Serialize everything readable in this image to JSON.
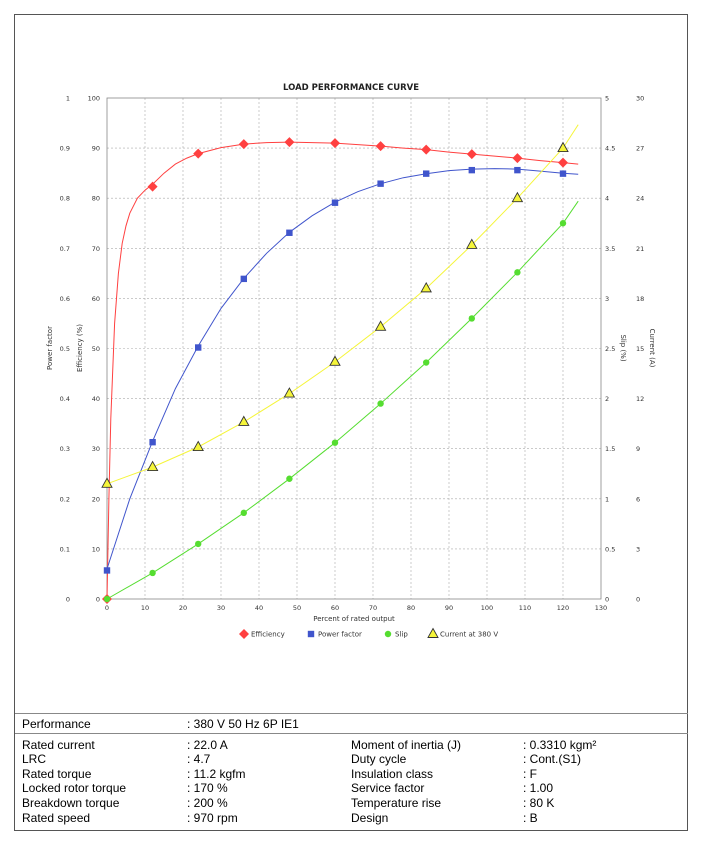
{
  "chart_data": {
    "type": "line",
    "title": "LOAD PERFORMANCE CURVE",
    "xlabel": "Percent of rated output",
    "xlim": [
      0,
      130
    ],
    "x_ticks": [
      0,
      10,
      20,
      30,
      40,
      50,
      60,
      70,
      80,
      90,
      100,
      110,
      120,
      130
    ],
    "axes": {
      "power_factor": {
        "label": "Power factor",
        "range": [
          0,
          1
        ],
        "ticks": [
          "0",
          "0.1",
          "0.2",
          "0.3",
          "0.4",
          "0.5",
          "0.6",
          "0.7",
          "0.8",
          "0.9",
          "1"
        ]
      },
      "efficiency": {
        "label": "Efficiency (%)",
        "range": [
          0,
          100
        ],
        "ticks": [
          "0",
          "10",
          "20",
          "30",
          "40",
          "50",
          "60",
          "70",
          "80",
          "90",
          "100"
        ]
      },
      "slip": {
        "label": "Slip (%)",
        "range": [
          0,
          5
        ],
        "ticks": [
          "0",
          "0.5",
          "1",
          "1.5",
          "2",
          "2.5",
          "3",
          "3.5",
          "4",
          "4.5",
          "5"
        ]
      },
      "current": {
        "label": "Current (A)",
        "range": [
          0,
          30
        ],
        "ticks": [
          "0",
          "3",
          "6",
          "9",
          "12",
          "15",
          "18",
          "21",
          "24",
          "27",
          "30"
        ]
      }
    },
    "grid": true,
    "legend_position": "bottom",
    "series": [
      {
        "name": "Efficiency",
        "axis": "efficiency",
        "color": "#ff4040",
        "marker": "diamond",
        "points": [
          [
            0,
            0
          ],
          [
            12,
            82.3
          ],
          [
            24,
            88.9
          ],
          [
            36,
            90.8
          ],
          [
            48,
            91.2
          ],
          [
            60,
            91.0
          ],
          [
            72,
            90.4
          ],
          [
            84,
            89.7
          ],
          [
            96,
            88.8
          ],
          [
            108,
            88.0
          ],
          [
            120,
            87.1
          ]
        ],
        "curve": [
          [
            0,
            0
          ],
          [
            0.5,
            20
          ],
          [
            1,
            36
          ],
          [
            2,
            55
          ],
          [
            3,
            65
          ],
          [
            4,
            71
          ],
          [
            5,
            74.5
          ],
          [
            6,
            77
          ],
          [
            8,
            80
          ],
          [
            10,
            81.6
          ],
          [
            12,
            82.8
          ],
          [
            15,
            85
          ],
          [
            18,
            86.8
          ],
          [
            21,
            88
          ],
          [
            24,
            88.9
          ],
          [
            30,
            90.1
          ],
          [
            36,
            90.8
          ],
          [
            42,
            91.1
          ],
          [
            48,
            91.2
          ],
          [
            54,
            91.1
          ],
          [
            60,
            91.0
          ],
          [
            66,
            90.7
          ],
          [
            72,
            90.4
          ],
          [
            78,
            90.0
          ],
          [
            84,
            89.7
          ],
          [
            90,
            89.2
          ],
          [
            96,
            88.8
          ],
          [
            102,
            88.4
          ],
          [
            108,
            88.0
          ],
          [
            114,
            87.5
          ],
          [
            120,
            87.1
          ],
          [
            124,
            86.8
          ]
        ]
      },
      {
        "name": "Power factor",
        "axis": "power_factor",
        "color": "#4055cc",
        "marker": "square",
        "points": [
          [
            0,
            0.057
          ],
          [
            12,
            0.313
          ],
          [
            24,
            0.502
          ],
          [
            36,
            0.639
          ],
          [
            48,
            0.731
          ],
          [
            60,
            0.791
          ],
          [
            72,
            0.829
          ],
          [
            84,
            0.849
          ],
          [
            96,
            0.856
          ],
          [
            108,
            0.856
          ],
          [
            120,
            0.849
          ]
        ],
        "curve": [
          [
            0,
            0.06
          ],
          [
            6,
            0.2
          ],
          [
            12,
            0.315
          ],
          [
            18,
            0.42
          ],
          [
            24,
            0.505
          ],
          [
            30,
            0.58
          ],
          [
            36,
            0.64
          ],
          [
            42,
            0.69
          ],
          [
            48,
            0.732
          ],
          [
            54,
            0.765
          ],
          [
            60,
            0.792
          ],
          [
            66,
            0.813
          ],
          [
            72,
            0.829
          ],
          [
            78,
            0.841
          ],
          [
            84,
            0.849
          ],
          [
            90,
            0.855
          ],
          [
            96,
            0.858
          ],
          [
            102,
            0.859
          ],
          [
            108,
            0.858
          ],
          [
            114,
            0.854
          ],
          [
            120,
            0.85
          ],
          [
            124,
            0.848
          ]
        ]
      },
      {
        "name": "Slip",
        "axis": "slip",
        "color": "#55dd30",
        "marker": "circle",
        "points": [
          [
            0,
            0
          ],
          [
            12,
            0.26
          ],
          [
            24,
            0.55
          ],
          [
            36,
            0.86
          ],
          [
            48,
            1.2
          ],
          [
            60,
            1.56
          ],
          [
            72,
            1.95
          ],
          [
            84,
            2.36
          ],
          [
            96,
            2.8
          ],
          [
            108,
            3.26
          ],
          [
            120,
            3.75
          ]
        ],
        "curve": [
          [
            0,
            0
          ],
          [
            12,
            0.26
          ],
          [
            24,
            0.55
          ],
          [
            36,
            0.86
          ],
          [
            48,
            1.2
          ],
          [
            60,
            1.56
          ],
          [
            72,
            1.95
          ],
          [
            84,
            2.36
          ],
          [
            96,
            2.8
          ],
          [
            108,
            3.26
          ],
          [
            120,
            3.75
          ],
          [
            124,
            3.97
          ]
        ]
      },
      {
        "name": "Current at 380 V",
        "axis": "current",
        "color": "#f5f53a",
        "marker": "triangle",
        "points": [
          [
            0,
            6.9
          ],
          [
            12,
            7.9
          ],
          [
            24,
            9.1
          ],
          [
            36,
            10.6
          ],
          [
            48,
            12.3
          ],
          [
            60,
            14.2
          ],
          [
            72,
            16.3
          ],
          [
            84,
            18.6
          ],
          [
            96,
            21.2
          ],
          [
            108,
            24.0
          ],
          [
            120,
            27.0
          ]
        ],
        "curve": [
          [
            0,
            6.9
          ],
          [
            12,
            7.9
          ],
          [
            24,
            9.1
          ],
          [
            36,
            10.6
          ],
          [
            48,
            12.3
          ],
          [
            60,
            14.2
          ],
          [
            72,
            16.3
          ],
          [
            84,
            18.6
          ],
          [
            96,
            21.2
          ],
          [
            108,
            24.0
          ],
          [
            120,
            27.0
          ],
          [
            124,
            28.4
          ]
        ]
      }
    ]
  },
  "specs": {
    "performance_label": "Performance",
    "performance_value": ": 380 V 50 Hz 6P IE1",
    "left": [
      {
        "label": "Rated current",
        "value": ": 22.0 A"
      },
      {
        "label": "LRC",
        "value": ": 4.7"
      },
      {
        "label": "Rated torque",
        "value": ": 11.2 kgfm"
      },
      {
        "label": "Locked rotor torque",
        "value": ": 170 %"
      },
      {
        "label": "Breakdown torque",
        "value": ": 200 %"
      },
      {
        "label": "Rated speed",
        "value": ": 970 rpm"
      }
    ],
    "right": [
      {
        "label": "Moment of inertia (J)",
        "value": ": 0.3310 kgm²"
      },
      {
        "label": "Duty cycle",
        "value": ": Cont.(S1)"
      },
      {
        "label": "Insulation class",
        "value": ": F"
      },
      {
        "label": "Service factor",
        "value": ": 1.00"
      },
      {
        "label": "Temperature rise",
        "value": ": 80 K"
      },
      {
        "label": "Design",
        "value": ": B"
      }
    ]
  }
}
